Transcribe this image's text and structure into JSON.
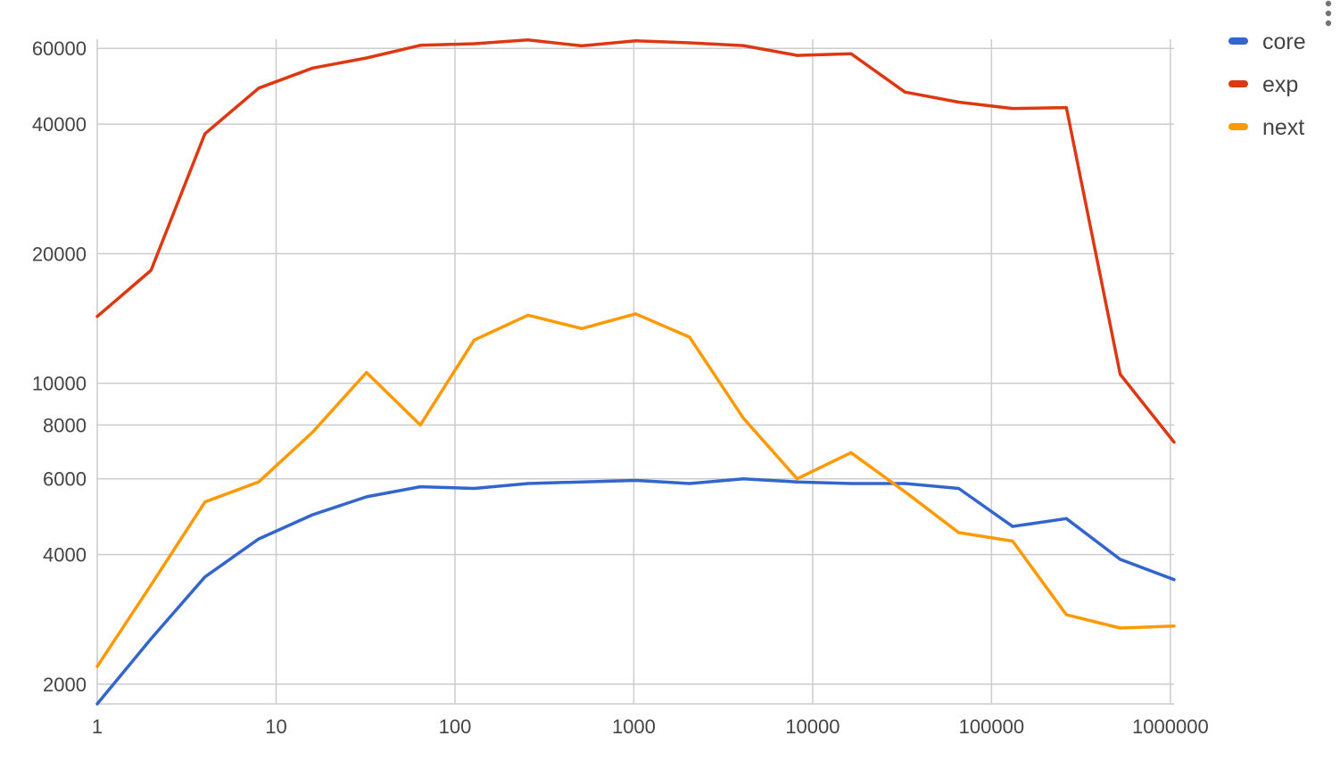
{
  "chart_data": {
    "type": "line",
    "x_scale": "log",
    "y_scale": "log",
    "x": [
      1,
      2,
      4,
      8,
      16,
      32,
      64,
      128,
      256,
      512,
      1024,
      2048,
      4096,
      8192,
      16384,
      32768,
      65536,
      131072,
      262144,
      524288,
      1048576
    ],
    "series": [
      {
        "name": "core",
        "color": "#3366cc",
        "values": [
          1800,
          2550,
          3550,
          4350,
          4950,
          5450,
          5750,
          5700,
          5850,
          5900,
          5950,
          5850,
          6000,
          5900,
          5850,
          5850,
          5700,
          4650,
          4850,
          3900,
          3500
        ]
      },
      {
        "name": "exp",
        "color": "#dc3912",
        "values": [
          14300,
          18300,
          38000,
          48500,
          54000,
          57000,
          61000,
          61500,
          62800,
          60800,
          62500,
          61800,
          60900,
          57800,
          58300,
          47500,
          45000,
          43500,
          43700,
          10500,
          7300
        ]
      },
      {
        "name": "next",
        "color": "#ff9900",
        "values": [
          2200,
          3400,
          5300,
          5900,
          7700,
          10600,
          8000,
          12600,
          14400,
          13400,
          14500,
          12800,
          8300,
          6000,
          6900,
          5600,
          4500,
          4300,
          2900,
          2700,
          2730
        ]
      }
    ],
    "x_ticks": [
      "1",
      "10",
      "100",
      "1000",
      "10000",
      "100000",
      "1000000"
    ],
    "y_ticks": [
      "2000",
      "4000",
      "6000",
      "8000",
      "10000",
      "20000",
      "40000",
      "60000"
    ],
    "x_tick_values": [
      1,
      10,
      100,
      1000,
      10000,
      100000,
      1000000
    ],
    "y_tick_values": [
      2000,
      4000,
      6000,
      8000,
      10000,
      20000,
      40000,
      60000
    ],
    "xlim": [
      1,
      1048576
    ],
    "ylim": [
      1800,
      63000
    ],
    "grid": true,
    "legend_position": "top-right"
  }
}
